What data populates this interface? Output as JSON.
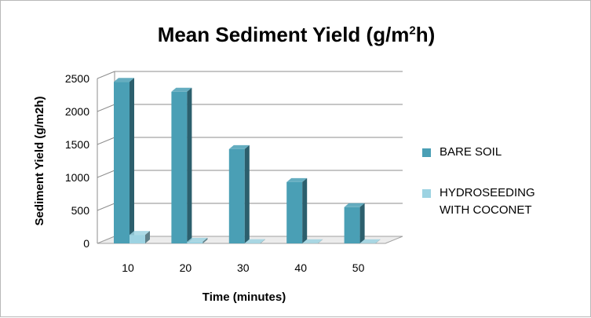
{
  "chart_data": {
    "type": "bar",
    "title": "Mean Sediment Yield (g/m2h)",
    "title_main": "Mean Sediment Yield (g/m",
    "title_sup": "2",
    "title_tail": "h)",
    "xlabel": "Time (minutes)",
    "ylabel": "Sediment Yield (g/m2h)",
    "categories": [
      "10",
      "20",
      "30",
      "40",
      "50"
    ],
    "yticks": [
      "0",
      "500",
      "1000",
      "1500",
      "2000",
      "2500"
    ],
    "ylim": [
      0,
      2500
    ],
    "grid": true,
    "legend_position": "right",
    "series": [
      {
        "name": "BARE SOIL",
        "values": [
          2450,
          2300,
          1430,
          930,
          550
        ],
        "color": "#4a9fb5"
      },
      {
        "name": "HYDROSEEDING WITH COCONET",
        "values": [
          130,
          25,
          5,
          3,
          3
        ],
        "color": "#9dd3e2"
      }
    ]
  }
}
